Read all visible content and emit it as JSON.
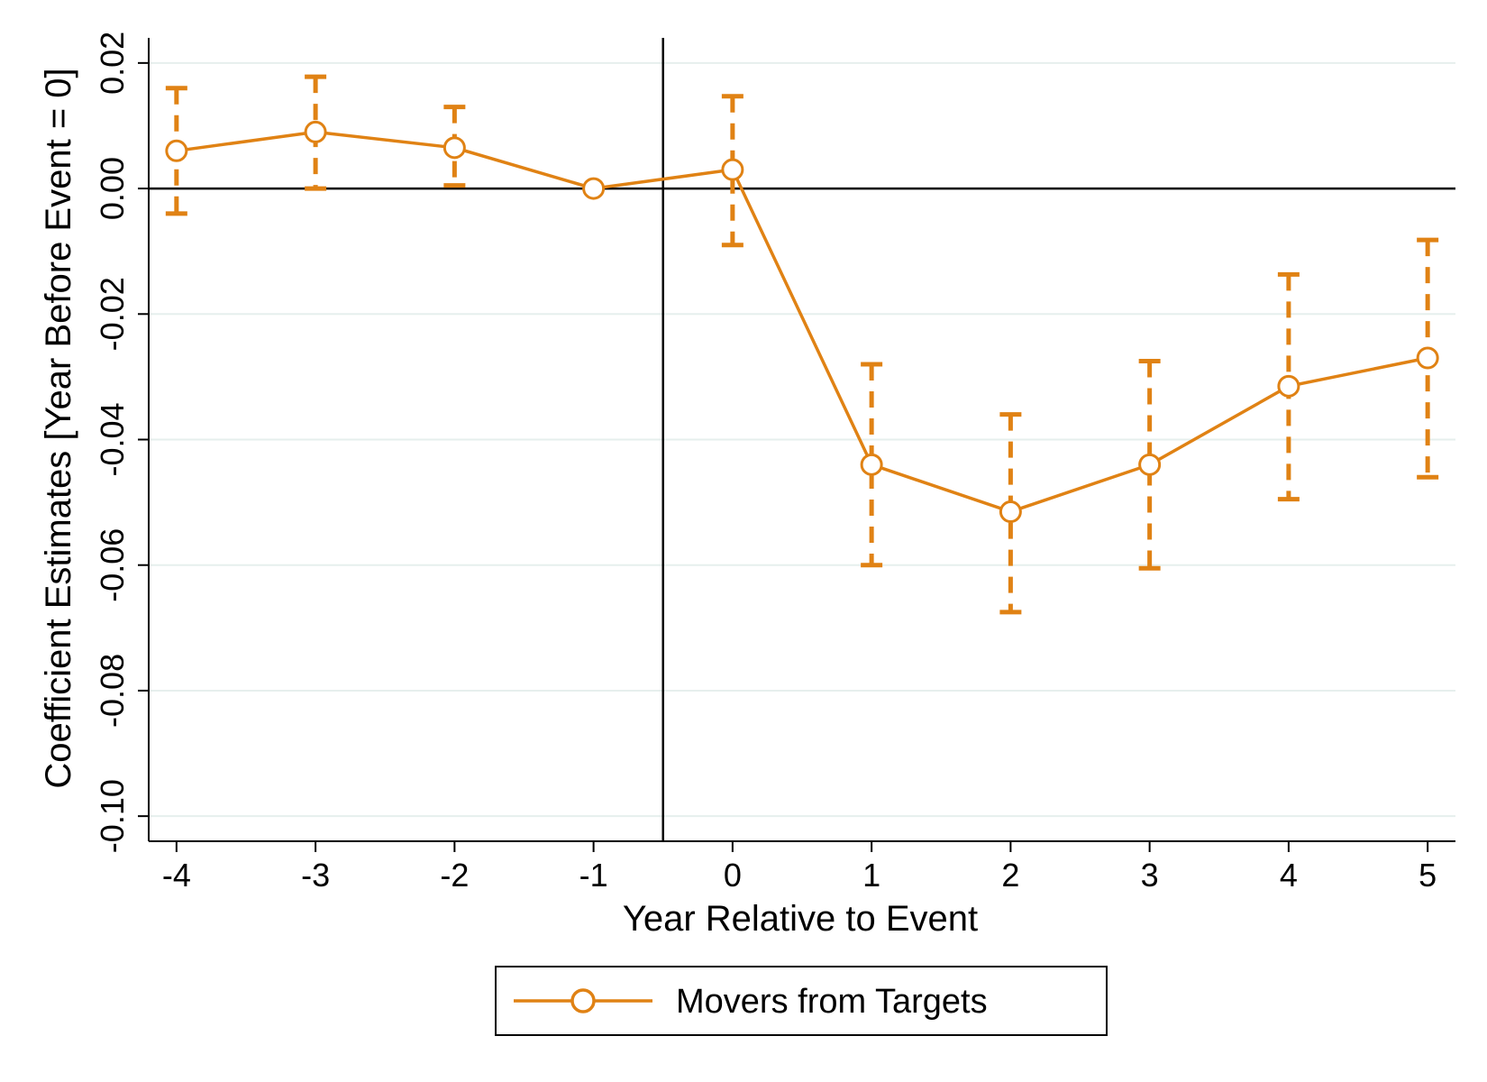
{
  "chart_data": {
    "type": "line",
    "title": "",
    "xlabel": "Year Relative to Event",
    "ylabel": "Coefficient Estimates [Year Before Event = 0]",
    "x": [
      -4,
      -3,
      -2,
      -1,
      0,
      1,
      2,
      3,
      4,
      5
    ],
    "x_ticks": [
      "-4",
      "-3",
      "-2",
      "-1",
      "0",
      "1",
      "2",
      "3",
      "4",
      "5"
    ],
    "y_ticks": [
      "-0.10",
      "-0.08",
      "-0.06",
      "-0.04",
      "-0.02",
      "0.00",
      "0.02"
    ],
    "y_tick_values": [
      -0.1,
      -0.08,
      -0.06,
      -0.04,
      -0.02,
      0.0,
      0.02
    ],
    "xlim": [
      -4.2,
      5.2
    ],
    "ylim": [
      -0.104,
      0.024
    ],
    "grid": "horizontal",
    "reference_lines": {
      "y": 0.0,
      "x": -0.5
    },
    "series": [
      {
        "name": "Movers from Targets",
        "color": "#E08214",
        "marker": "hollow-circle",
        "values": [
          0.006,
          0.009,
          0.0065,
          0.0,
          0.003,
          -0.044,
          -0.0515,
          -0.044,
          -0.0315,
          -0.027
        ],
        "ci_lower": [
          -0.004,
          0.0,
          0.0005,
          null,
          -0.009,
          -0.06,
          -0.0675,
          -0.0605,
          -0.0495,
          -0.046
        ],
        "ci_upper": [
          0.016,
          0.0178,
          0.013,
          null,
          0.0147,
          -0.028,
          -0.036,
          -0.0275,
          -0.0137,
          -0.0082
        ]
      }
    ],
    "legend": {
      "position": "bottom",
      "entries": [
        "Movers from Targets"
      ]
    }
  }
}
